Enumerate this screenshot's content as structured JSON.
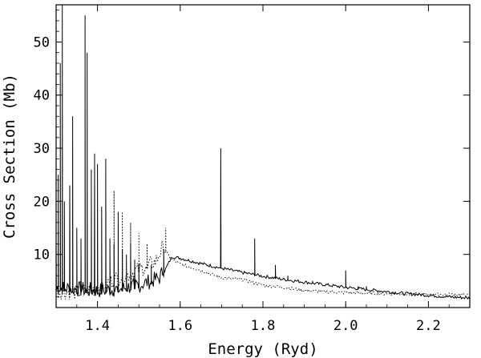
{
  "chart_data": {
    "type": "line",
    "title": "",
    "xlabel": "Energy (Ryd)",
    "ylabel": "Cross Section (Mb)",
    "xlim": [
      1.3,
      2.3
    ],
    "ylim": [
      0,
      57
    ],
    "xticks": [
      "1.4",
      "1.6",
      "1.8",
      "2.0",
      "2.2"
    ],
    "yticks": [
      "10",
      "20",
      "30",
      "40",
      "50"
    ],
    "grid": false,
    "legend": "none",
    "colors": {
      "line": "#000000",
      "background": "#ffffff"
    },
    "series": [
      {
        "style": "solid",
        "background": [
          [
            1.3,
            3.2
          ],
          [
            1.35,
            2.9
          ],
          [
            1.4,
            2.6
          ],
          [
            1.45,
            2.9
          ],
          [
            1.5,
            3.6
          ],
          [
            1.55,
            5.0
          ],
          [
            1.58,
            9.6
          ],
          [
            1.6,
            9.3
          ],
          [
            1.65,
            8.3
          ],
          [
            1.7,
            7.4
          ],
          [
            1.75,
            6.6
          ],
          [
            1.8,
            5.9
          ],
          [
            1.85,
            5.3
          ],
          [
            1.9,
            4.8
          ],
          [
            1.95,
            4.3
          ],
          [
            2.0,
            3.8
          ],
          [
            2.05,
            3.4
          ],
          [
            2.1,
            3.0
          ],
          [
            2.15,
            2.6
          ],
          [
            2.2,
            2.3
          ],
          [
            2.25,
            2.0
          ],
          [
            2.3,
            1.8
          ]
        ],
        "peaks": [
          [
            1.3,
            13.0
          ],
          [
            1.305,
            25.0
          ],
          [
            1.31,
            46.0
          ],
          [
            1.315,
            57.0
          ],
          [
            1.32,
            20.0
          ],
          [
            1.333,
            23.0
          ],
          [
            1.34,
            36.0
          ],
          [
            1.35,
            15.0
          ],
          [
            1.36,
            13.0
          ],
          [
            1.37,
            55.0
          ],
          [
            1.375,
            48.0
          ],
          [
            1.385,
            26.0
          ],
          [
            1.393,
            29.0
          ],
          [
            1.4,
            27.0
          ],
          [
            1.41,
            19.0
          ],
          [
            1.42,
            28.0
          ],
          [
            1.43,
            13.0
          ],
          [
            1.44,
            12.0
          ],
          [
            1.45,
            18.0
          ],
          [
            1.46,
            11.0
          ],
          [
            1.47,
            10.0
          ],
          [
            1.48,
            12.0
          ],
          [
            1.49,
            9.0
          ],
          [
            1.5,
            8.0
          ],
          [
            1.53,
            8.0
          ],
          [
            1.56,
            11.0
          ],
          [
            1.698,
            30.0
          ],
          [
            1.78,
            13.0
          ],
          [
            1.83,
            8.0
          ],
          [
            1.86,
            6.0
          ],
          [
            1.92,
            5.0
          ],
          [
            2.0,
            7.0
          ],
          [
            2.03,
            4.0
          ],
          [
            2.05,
            4.0
          ]
        ]
      },
      {
        "style": "dotted",
        "background": [
          [
            1.3,
            2.5
          ],
          [
            1.35,
            2.2
          ],
          [
            1.4,
            3.0
          ],
          [
            1.45,
            5.0
          ],
          [
            1.5,
            6.5
          ],
          [
            1.54,
            8.0
          ],
          [
            1.56,
            11.0
          ],
          [
            1.58,
            9.0
          ],
          [
            1.6,
            8.2
          ],
          [
            1.65,
            7.0
          ],
          [
            1.7,
            5.6
          ],
          [
            1.75,
            5.3
          ],
          [
            1.8,
            4.2
          ],
          [
            1.85,
            3.8
          ],
          [
            1.9,
            3.2
          ],
          [
            1.95,
            3.0
          ],
          [
            2.0,
            2.8
          ],
          [
            2.1,
            2.6
          ],
          [
            2.2,
            2.5
          ],
          [
            2.3,
            2.4
          ]
        ],
        "peaks": [
          [
            1.42,
            20.0
          ],
          [
            1.44,
            22.0
          ],
          [
            1.46,
            18.0
          ],
          [
            1.48,
            16.0
          ],
          [
            1.5,
            14.0
          ],
          [
            1.52,
            12.0
          ],
          [
            1.565,
            15.0
          ]
        ]
      }
    ]
  }
}
